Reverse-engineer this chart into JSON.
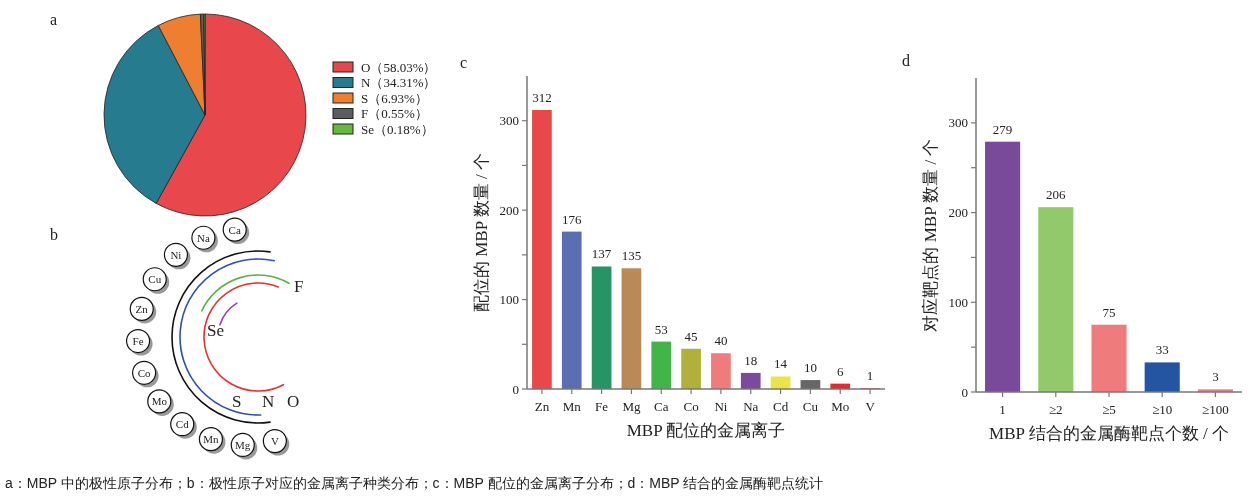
{
  "chart_data": [
    {
      "type": "pie",
      "title": "a",
      "categories": [
        "O（58.03%）",
        "N（34.31%）",
        "S（6.93%）",
        "F（0.55%）",
        "Se（0.18%）"
      ],
      "values": [
        58.03,
        34.31,
        6.93,
        0.55,
        0.18
      ],
      "colors": [
        "#e8484b",
        "#277b8f",
        "#ef7f30",
        "#5a5e5f",
        "#66b93e"
      ],
      "legend": "right",
      "annotations": [
        "a：MBP 中的极性原子分布；b：极性原子对应的金属离子种类分布；c：MBP 配位的金属离子分布；d：MBP 结合的金属酶靶点统计"
      ]
    },
    {
      "type": "other",
      "title": "b",
      "annotations": [
        "Ca",
        "Na",
        "Ni",
        "Cu",
        "Zn",
        "Fe",
        "Co",
        "Mo",
        "Cd",
        "Mn",
        "Mg",
        "V",
        "F",
        "Se",
        "S",
        "N",
        "O"
      ]
    },
    {
      "type": "bar",
      "title": "c",
      "xlabel": "MBP 配位的金属离子",
      "ylabel": "配位的 MBP 数量 / 个",
      "categories": [
        "Zn",
        "Mn",
        "Fe",
        "Mg",
        "Ca",
        "Co",
        "Ni",
        "Na",
        "Cd",
        "Cu",
        "Mo",
        "V"
      ],
      "values": [
        312,
        176,
        137,
        135,
        53,
        45,
        40,
        18,
        14,
        10,
        6,
        1
      ],
      "colors": [
        "#e9484b",
        "#5a6fb3",
        "#279466",
        "#b98a57",
        "#42b549",
        "#b1b03a",
        "#f07b7d",
        "#7a4a9e",
        "#e8e44a",
        "#666666",
        "#e82a2a",
        "#e8484b"
      ],
      "ylim": [
        0,
        350
      ],
      "yticks": [
        0,
        {
          "value": 50,
          "label": null
        },
        100,
        {
          "value": 150,
          "label": null
        },
        200,
        {
          "value": 250,
          "label": null
        },
        300
      ],
      "data_labels": true,
      "grid": false,
      "legend": false
    },
    {
      "type": "bar",
      "title": "d",
      "xlabel": "MBP 结合的金属酶靶点个数 / 个",
      "ylabel": "对应靶点的 MBP 数量 / 个",
      "categories": [
        "1",
        "≥2",
        "≥5",
        "≥10",
        "≥100"
      ],
      "values": [
        279,
        206,
        75,
        33,
        3
      ],
      "colors": [
        "#7a4a9a",
        "#92c96a",
        "#f07b7d",
        "#2455a3",
        "#f07b7d"
      ],
      "ylim": [
        0,
        350
      ],
      "yticks": [
        0,
        {
          "value": 50,
          "label": null
        },
        100,
        {
          "value": 150,
          "label": null
        },
        200,
        {
          "value": 250,
          "label": null
        },
        300
      ],
      "data_labels": true,
      "grid": false,
      "legend": false
    }
  ]
}
